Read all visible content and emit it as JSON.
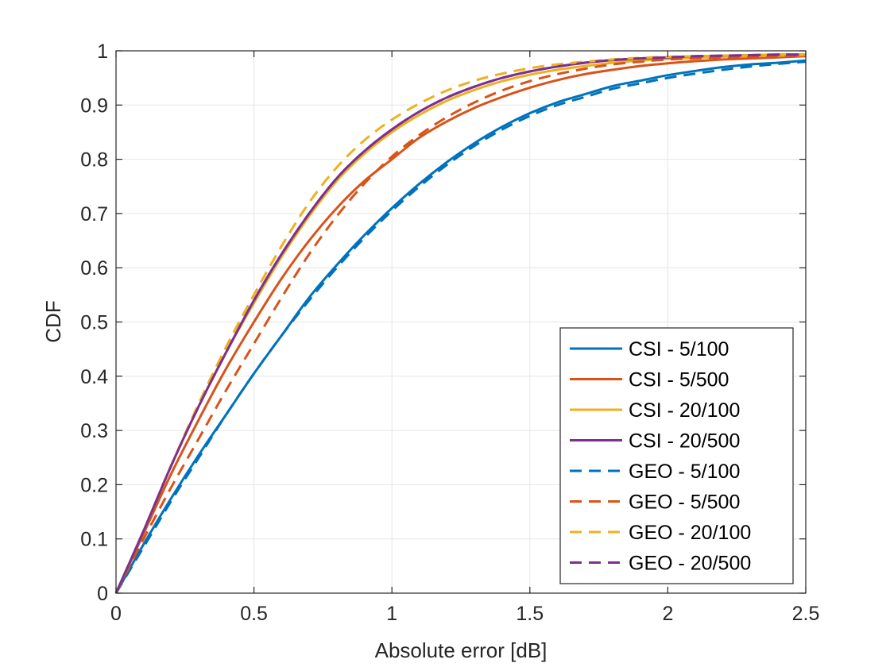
{
  "chart_data": {
    "type": "line",
    "title": "",
    "xlabel": "Absolute error [dB]",
    "ylabel": "CDF",
    "xlim": [
      0,
      2.5
    ],
    "ylim": [
      0,
      1
    ],
    "grid": true,
    "legend_position": "bottom-right",
    "xticks": [
      0,
      0.5,
      1,
      1.5,
      2,
      2.5
    ],
    "xtick_labels": [
      "0",
      "0.5",
      "1",
      "1.5",
      "2",
      "2.5"
    ],
    "yticks": [
      0,
      0.1,
      0.2,
      0.3,
      0.4,
      0.5,
      0.6,
      0.7,
      0.8,
      0.9,
      1
    ],
    "ytick_labels": [
      "0",
      "0.1",
      "0.2",
      "0.3",
      "0.4",
      "0.5",
      "0.6",
      "0.7",
      "0.8",
      "0.9",
      "1"
    ],
    "x": [
      0,
      0.1,
      0.2,
      0.3,
      0.4,
      0.5,
      0.6,
      0.7,
      0.8,
      0.9,
      1.0,
      1.1,
      1.2,
      1.3,
      1.4,
      1.5,
      1.6,
      1.7,
      1.8,
      1.9,
      2.0,
      2.1,
      2.2,
      2.3,
      2.4,
      2.5
    ],
    "series": [
      {
        "name": "CSI - 5/100",
        "color": "#0072BD",
        "dash": "solid",
        "values": [
          0,
          0.09,
          0.175,
          0.255,
          0.33,
          0.405,
          0.475,
          0.545,
          0.605,
          0.66,
          0.71,
          0.755,
          0.795,
          0.83,
          0.86,
          0.885,
          0.905,
          0.92,
          0.935,
          0.945,
          0.955,
          0.963,
          0.97,
          0.975,
          0.978,
          0.982
        ]
      },
      {
        "name": "CSI - 5/500",
        "color": "#D95319",
        "dash": "solid",
        "values": [
          0,
          0.11,
          0.22,
          0.32,
          0.415,
          0.5,
          0.58,
          0.65,
          0.71,
          0.76,
          0.8,
          0.84,
          0.87,
          0.895,
          0.915,
          0.932,
          0.946,
          0.957,
          0.965,
          0.972,
          0.977,
          0.981,
          0.984,
          0.986,
          0.988,
          0.99
        ]
      },
      {
        "name": "CSI - 20/100",
        "color": "#EDB120",
        "dash": "solid",
        "values": [
          0,
          0.115,
          0.235,
          0.345,
          0.445,
          0.535,
          0.62,
          0.695,
          0.76,
          0.81,
          0.85,
          0.882,
          0.908,
          0.928,
          0.944,
          0.956,
          0.965,
          0.972,
          0.978,
          0.982,
          0.985,
          0.987,
          0.989,
          0.99,
          0.991,
          0.992
        ]
      },
      {
        "name": "CSI - 20/500",
        "color": "#7E2F8E",
        "dash": "solid",
        "values": [
          0,
          0.115,
          0.235,
          0.345,
          0.445,
          0.54,
          0.625,
          0.7,
          0.765,
          0.815,
          0.855,
          0.888,
          0.914,
          0.934,
          0.95,
          0.962,
          0.971,
          0.978,
          0.983,
          0.986,
          0.988,
          0.99,
          0.991,
          0.992,
          0.993,
          0.993
        ]
      },
      {
        "name": "GEO - 5/100",
        "color": "#0072BD",
        "dash": "dashed",
        "values": [
          0,
          0.085,
          0.17,
          0.25,
          0.33,
          0.405,
          0.475,
          0.54,
          0.6,
          0.655,
          0.705,
          0.75,
          0.79,
          0.825,
          0.855,
          0.88,
          0.9,
          0.915,
          0.93,
          0.94,
          0.95,
          0.958,
          0.965,
          0.971,
          0.976,
          0.98
        ]
      },
      {
        "name": "GEO - 5/500",
        "color": "#D95319",
        "dash": "dashed",
        "values": [
          0,
          0.1,
          0.195,
          0.285,
          0.375,
          0.46,
          0.545,
          0.625,
          0.695,
          0.755,
          0.805,
          0.845,
          0.878,
          0.905,
          0.927,
          0.944,
          0.957,
          0.967,
          0.975,
          0.98,
          0.984,
          0.986,
          0.988,
          0.989,
          0.99,
          0.99
        ]
      },
      {
        "name": "GEO - 20/100",
        "color": "#EDB120",
        "dash": "dashed",
        "values": [
          0,
          0.115,
          0.235,
          0.35,
          0.455,
          0.55,
          0.64,
          0.72,
          0.785,
          0.835,
          0.873,
          0.903,
          0.927,
          0.945,
          0.958,
          0.968,
          0.975,
          0.98,
          0.984,
          0.987,
          0.989,
          0.99,
          0.991,
          0.992,
          0.993,
          0.993
        ]
      },
      {
        "name": "GEO - 20/500",
        "color": "#7E2F8E",
        "dash": "dashed",
        "values": [
          0,
          0.115,
          0.235,
          0.345,
          0.445,
          0.54,
          0.625,
          0.7,
          0.765,
          0.815,
          0.855,
          0.888,
          0.914,
          0.934,
          0.95,
          0.962,
          0.971,
          0.978,
          0.983,
          0.986,
          0.988,
          0.99,
          0.991,
          0.992,
          0.993,
          0.993
        ]
      }
    ]
  }
}
